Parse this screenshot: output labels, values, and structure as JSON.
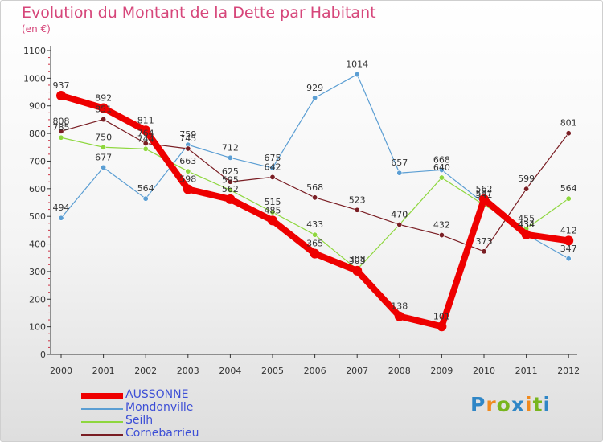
{
  "header": {
    "title": "Evolution du Montant de la Dette par Habitant",
    "unit": "(en €)"
  },
  "logo": {
    "text": "Proxiti"
  },
  "colors": {
    "title": "#d6467a",
    "axis_text": "#333333",
    "legend_text": "#3d4fd6"
  },
  "chart_data": {
    "type": "line",
    "title": "Evolution du Montant de la Dette par Habitant",
    "subtitle": "(en €)",
    "xlabel": "",
    "ylabel": "",
    "x": [
      "2000",
      "2001",
      "2002",
      "2003",
      "2004",
      "2005",
      "2006",
      "2007",
      "2008",
      "2009",
      "2010",
      "2011",
      "2012"
    ],
    "ylim": [
      0,
      1100
    ],
    "yticks": [
      0,
      100,
      200,
      300,
      400,
      500,
      600,
      700,
      800,
      900,
      1000,
      1100
    ],
    "grid": false,
    "legend_position": "bottom-left",
    "series": [
      {
        "name": "AUSSONNE",
        "color": "#ee0000",
        "values": [
          937,
          892,
          811,
          598,
          562,
          485,
          365,
          303,
          138,
          101,
          562,
          434,
          412
        ]
      },
      {
        "name": "Mondonville",
        "color": "#5b9ed3",
        "values": [
          494,
          677,
          564,
          759,
          712,
          675,
          929,
          1014,
          657,
          668,
          547,
          434,
          347
        ]
      },
      {
        "name": "Seilh",
        "color": "#8ed73e",
        "values": [
          785,
          750,
          744,
          663,
          595,
          515,
          433,
          308,
          470,
          640,
          541,
          455,
          564
        ]
      },
      {
        "name": "Cornebarrieu",
        "color": "#7a1e24",
        "values": [
          808,
          851,
          764,
          745,
          625,
          642,
          568,
          523,
          470,
          432,
          373,
          599,
          801
        ]
      }
    ]
  }
}
